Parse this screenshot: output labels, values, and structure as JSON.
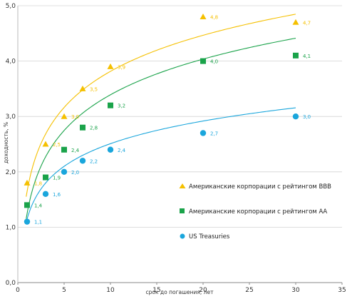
{
  "chart_data": {
    "type": "scatter",
    "xlabel": "срок до погашения, лет",
    "ylabel": "доходность, %",
    "xlim": [
      0,
      35
    ],
    "ylim": [
      0,
      5
    ],
    "x_ticks": [
      "0",
      "5",
      "10",
      "15",
      "20",
      "25",
      "30",
      "35"
    ],
    "y_ticks": [
      "0,0",
      "1,0",
      "2,0",
      "3,0",
      "4,0",
      "5,0"
    ],
    "grid": "horizontal",
    "legend_position": "right",
    "series": [
      {
        "name": "Американские корпорации с рейтингом BBB",
        "marker": "triangle",
        "color": "#f5c000",
        "points": [
          {
            "x": 1,
            "y": 1.8,
            "label": "1,8"
          },
          {
            "x": 3,
            "y": 2.5,
            "label": "2,5"
          },
          {
            "x": 5,
            "y": 3.0,
            "label": "3,0"
          },
          {
            "x": 7,
            "y": 3.5,
            "label": "3,5"
          },
          {
            "x": 10,
            "y": 3.9,
            "label": "3,9"
          },
          {
            "x": 20,
            "y": 4.8,
            "label": "4,8"
          },
          {
            "x": 30,
            "y": 4.7,
            "label": "4,7"
          }
        ],
        "trend": {
          "type": "log",
          "a": 1.65,
          "b": 0.94,
          "x_from": 0.9,
          "x_to": 30
        }
      },
      {
        "name": "Американские корпорации с рейтингом АА",
        "marker": "square",
        "color": "#1aa34a",
        "points": [
          {
            "x": 1,
            "y": 1.4,
            "label": "1,4"
          },
          {
            "x": 3,
            "y": 1.9,
            "label": "1,9"
          },
          {
            "x": 5,
            "y": 2.4,
            "label": "2,4"
          },
          {
            "x": 7,
            "y": 2.8,
            "label": "2,8"
          },
          {
            "x": 10,
            "y": 3.2,
            "label": "3,2"
          },
          {
            "x": 20,
            "y": 4.0,
            "label": "4,0"
          },
          {
            "x": 30,
            "y": 4.1,
            "label": "4,1"
          }
        ],
        "trend": {
          "type": "log",
          "a": 1.25,
          "b": 0.93,
          "x_from": 0.9,
          "x_to": 30
        }
      },
      {
        "name": "US Treasuries",
        "marker": "circle",
        "color": "#1aa6dc",
        "points": [
          {
            "x": 1,
            "y": 1.1,
            "label": "1,1"
          },
          {
            "x": 3,
            "y": 1.6,
            "label": "1,6"
          },
          {
            "x": 5,
            "y": 2.0,
            "label": "2,0"
          },
          {
            "x": 7,
            "y": 2.2,
            "label": "2,2"
          },
          {
            "x": 10,
            "y": 2.4,
            "label": "2,4"
          },
          {
            "x": 20,
            "y": 2.7,
            "label": "2,7"
          },
          {
            "x": 30,
            "y": 3.0,
            "label": "3,0"
          }
        ],
        "trend": {
          "type": "log",
          "a": 1.15,
          "b": 0.59,
          "x_from": 0.9,
          "x_to": 30
        }
      }
    ]
  }
}
